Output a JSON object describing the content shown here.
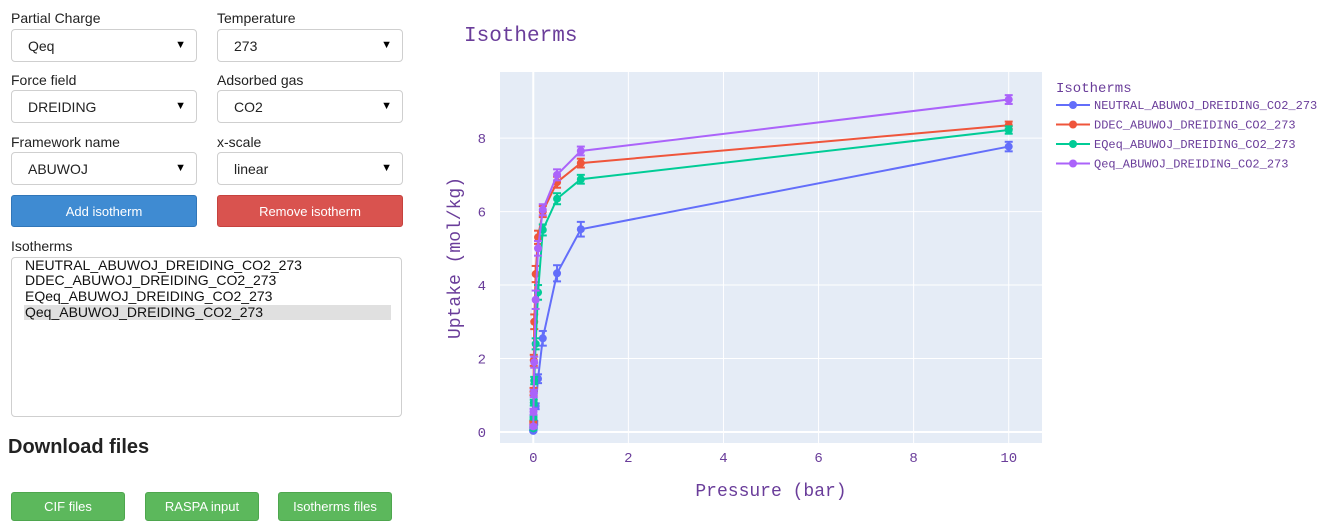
{
  "controls": {
    "partial_charge": {
      "label": "Partial Charge",
      "value": "Qeq"
    },
    "temperature": {
      "label": "Temperature",
      "value": "273"
    },
    "force_field": {
      "label": "Force field",
      "value": "DREIDING"
    },
    "adsorbed_gas": {
      "label": "Adsorbed gas",
      "value": "CO2"
    },
    "framework_name": {
      "label": "Framework name",
      "value": "ABUWOJ"
    },
    "x_scale": {
      "label": "x-scale",
      "value": "linear"
    },
    "add_button": "Add isotherm",
    "remove_button": "Remove isotherm"
  },
  "isotherms_list": {
    "label": "Isotherms",
    "items": [
      "NEUTRAL_ABUWOJ_DREIDING_CO2_273",
      "DDEC_ABUWOJ_DREIDING_CO2_273",
      "EQeq_ABUWOJ_DREIDING_CO2_273",
      "Qeq_ABUWOJ_DREIDING_CO2_273"
    ],
    "selected_index": 3
  },
  "download": {
    "title": "Download files",
    "buttons": [
      "CIF files",
      "RASPA input",
      "Isotherms files"
    ]
  },
  "colors": {
    "plot_bg": "#e5ecf6",
    "text": "#6a3d9a",
    "add_btn": "#3f8bd2",
    "remove_btn": "#d9534f",
    "download_btn": "#5cb85c"
  },
  "chart_data": {
    "type": "line",
    "title": "Isotherms",
    "xlabel": "Pressure (bar)",
    "ylabel": "Uptake (mol/kg)",
    "xlim": [
      -0.7,
      10.7
    ],
    "ylim": [
      -0.3,
      9.8
    ],
    "xticks": [
      0,
      2,
      4,
      6,
      8,
      10
    ],
    "yticks": [
      0,
      2,
      4,
      6,
      8
    ],
    "grid": true,
    "legend_title": "Isotherms",
    "legend_position": "right",
    "series": [
      {
        "name": "NEUTRAL_ABUWOJ_DREIDING_CO2_273",
        "color": "#636efa",
        "x": [
          0,
          0.005,
          0.01,
          0.02,
          0.05,
          0.1,
          0.2,
          0.5,
          1,
          10
        ],
        "y": [
          0.03,
          0.07,
          0.13,
          0.25,
          0.7,
          1.45,
          2.55,
          4.32,
          5.52,
          7.77
        ],
        "err": [
          0.02,
          0.03,
          0.04,
          0.05,
          0.08,
          0.12,
          0.2,
          0.22,
          0.2,
          0.13
        ]
      },
      {
        "name": "DDEC_ABUWOJ_DREIDING_CO2_273",
        "color": "#ef553b",
        "x": [
          0,
          0.005,
          0.01,
          0.02,
          0.05,
          0.1,
          0.2,
          0.5,
          1,
          10
        ],
        "y": [
          0.25,
          1.1,
          1.95,
          3.0,
          4.3,
          5.3,
          6.0,
          6.8,
          7.32,
          8.35
        ],
        "err": [
          0.05,
          0.1,
          0.15,
          0.2,
          0.22,
          0.18,
          0.15,
          0.15,
          0.12,
          0.1
        ]
      },
      {
        "name": "EQeq_ABUWOJ_DREIDING_CO2_273",
        "color": "#00cc96",
        "x": [
          0,
          0.005,
          0.01,
          0.02,
          0.05,
          0.1,
          0.2,
          0.5,
          1,
          10
        ],
        "y": [
          0.1,
          0.4,
          0.8,
          1.4,
          2.4,
          3.8,
          5.5,
          6.35,
          6.88,
          8.22
        ],
        "err": [
          0.04,
          0.06,
          0.08,
          0.1,
          0.15,
          0.2,
          0.15,
          0.15,
          0.12,
          0.1
        ]
      },
      {
        "name": "Qeq_ABUWOJ_DREIDING_CO2_273",
        "color": "#ab63fa",
        "x": [
          0,
          0.005,
          0.01,
          0.02,
          0.05,
          0.1,
          0.2,
          0.5,
          1,
          10
        ],
        "y": [
          0.15,
          0.55,
          1.05,
          1.9,
          3.6,
          5.0,
          6.05,
          7.0,
          7.65,
          9.05
        ],
        "err": [
          0.05,
          0.08,
          0.1,
          0.15,
          0.25,
          0.2,
          0.15,
          0.15,
          0.12,
          0.12
        ]
      }
    ]
  }
}
